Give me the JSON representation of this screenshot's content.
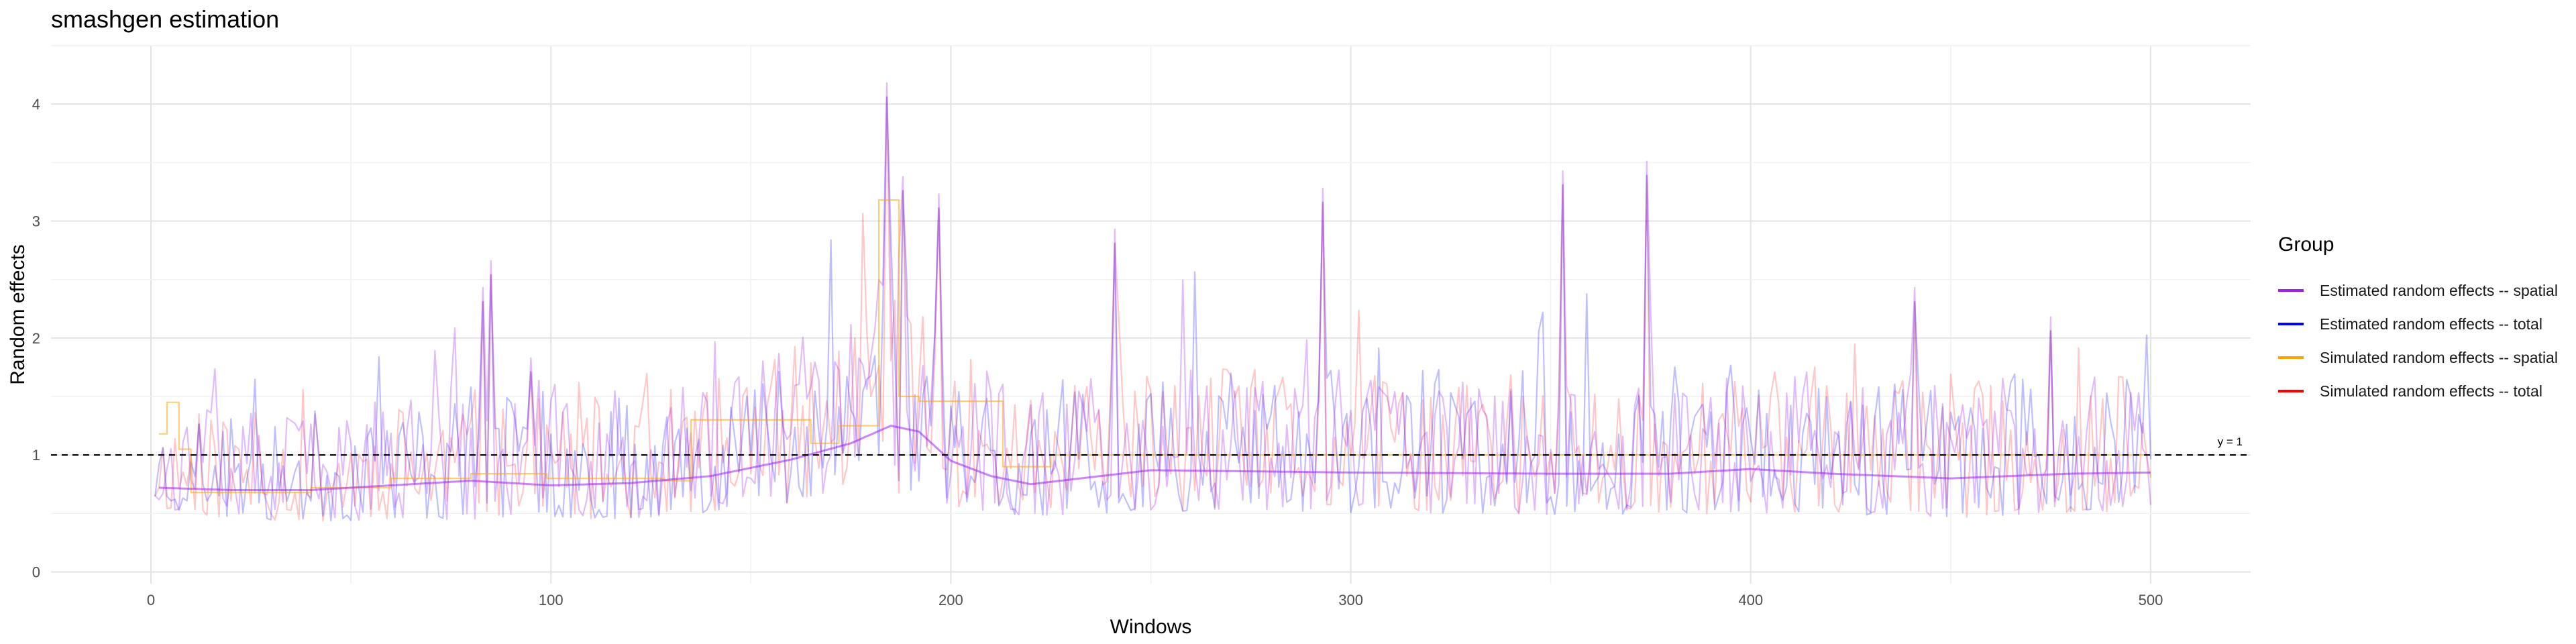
{
  "chart_data": {
    "type": "line",
    "title": "smashgen estimation",
    "xlabel": "Windows",
    "ylabel": "Random effects",
    "xlim": [
      -25,
      525
    ],
    "ylim": [
      -0.1,
      4.5
    ],
    "x_ticks": [
      0,
      100,
      200,
      300,
      400,
      500
    ],
    "y_ticks": [
      0,
      1,
      2,
      3,
      4
    ],
    "grid": true,
    "legend_title": "Group",
    "legend_position": "right",
    "reference_line": {
      "y": 1,
      "label": "y = 1",
      "style": "dashed"
    },
    "series": [
      {
        "name": "Estimated random effects -- spatial",
        "color": "#a020f0"
      },
      {
        "name": "Estimated random effects -- total",
        "color": "#0000ff"
      },
      {
        "name": "Simulated random effects -- spatial",
        "color": "#ffa500"
      },
      {
        "name": "Simulated random effects -- total",
        "color": "#ff0000"
      }
    ],
    "smooth_points": {
      "x": [
        2,
        20,
        40,
        60,
        80,
        100,
        120,
        140,
        160,
        175,
        185,
        192,
        200,
        210,
        220,
        250,
        300,
        350,
        380,
        400,
        420,
        450,
        480,
        500
      ],
      "y": [
        0.72,
        0.7,
        0.7,
        0.74,
        0.78,
        0.74,
        0.76,
        0.82,
        0.96,
        1.1,
        1.25,
        1.2,
        0.95,
        0.82,
        0.75,
        0.87,
        0.85,
        0.84,
        0.84,
        0.88,
        0.84,
        0.8,
        0.84,
        0.85
      ]
    },
    "simulated_spatial_steps": {
      "x": [
        2,
        4,
        7,
        10,
        40,
        60,
        80,
        99,
        128,
        135,
        165,
        172,
        182,
        187,
        192,
        213,
        225,
        500
      ],
      "y": [
        1.18,
        1.45,
        1.05,
        0.68,
        0.72,
        0.8,
        0.84,
        0.8,
        0.78,
        1.3,
        1.1,
        1.25,
        3.18,
        1.5,
        1.46,
        0.9,
        1.0,
        1.0
      ]
    },
    "noise_envelope": {
      "x": [
        0,
        20,
        40,
        60,
        80,
        100,
        120,
        140,
        160,
        175,
        182,
        185,
        192,
        200,
        220,
        250,
        300,
        350,
        400,
        450,
        500
      ],
      "base": [
        0.78,
        0.72,
        0.7,
        0.74,
        0.78,
        0.75,
        0.76,
        0.84,
        0.98,
        1.15,
        1.3,
        1.4,
        1.15,
        0.95,
        0.8,
        0.88,
        0.86,
        0.85,
        0.86,
        0.82,
        0.86
      ],
      "amplitude": [
        0.45,
        0.5,
        0.5,
        0.55,
        0.6,
        0.55,
        0.55,
        0.6,
        0.7,
        0.75,
        1.1,
        1.3,
        0.9,
        0.7,
        0.6,
        0.65,
        0.65,
        0.65,
        0.65,
        0.65,
        0.65
      ]
    },
    "peaks": {
      "x": [
        83,
        85,
        95,
        184,
        188,
        197,
        241,
        293,
        353,
        374,
        441,
        475
      ],
      "y": [
        2.55,
        2.78,
        1.95,
        4.3,
        3.5,
        3.35,
        3.05,
        3.4,
        3.55,
        3.63,
        2.55,
        2.3
      ]
    },
    "num_windows": 500
  }
}
